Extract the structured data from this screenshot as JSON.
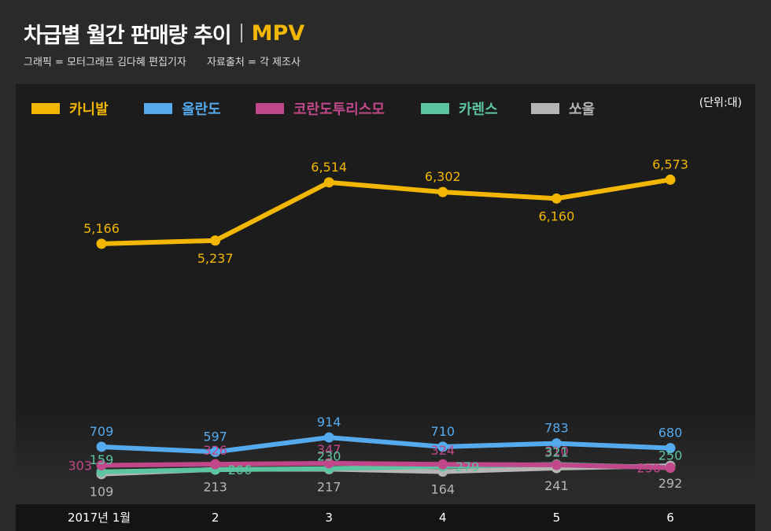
{
  "header": {
    "title": "차급별 월간 판매량 추이",
    "subtitle": "MPV",
    "graphic_credit": "그래픽 = 모터그래프 김다혜 편집기자",
    "source_credit": "자료출처 = 각 제조사"
  },
  "chart_data": {
    "type": "line",
    "title": "차급별 월간 판매량 추이 | MPV",
    "unit_label": "(단위:대)",
    "categories": [
      "2017년 1월",
      "2",
      "3",
      "4",
      "5",
      "6"
    ],
    "ylim": [
      0,
      7000
    ],
    "grid": false,
    "legend_position": "top",
    "series": [
      {
        "name": "카니발",
        "color": "#f2b705",
        "values": [
          5166,
          5237,
          6514,
          6302,
          6160,
          6573
        ],
        "labels": [
          "5,166",
          "5,237",
          "6,514",
          "6,302",
          "6,160",
          "6,573"
        ],
        "label_pos": [
          "above",
          "below",
          "above",
          "above",
          "below",
          "above"
        ]
      },
      {
        "name": "올란도",
        "color": "#55aaee",
        "values": [
          709,
          597,
          914,
          710,
          783,
          680
        ],
        "labels": [
          "709",
          "597",
          "914",
          "710",
          "783",
          "680"
        ],
        "label_pos": [
          "above",
          "above",
          "above",
          "above",
          "above",
          "above"
        ]
      },
      {
        "name": "코란도투리스모",
        "color": "#c0488a",
        "values": [
          303,
          326,
          347,
          324,
          310,
          250
        ],
        "labels": [
          "303",
          "326",
          "347",
          "324",
          "310",
          "250"
        ],
        "label_pos": [
          "left",
          "above",
          "above",
          "above",
          "above",
          "left"
        ]
      },
      {
        "name": "카렌스",
        "color": "#5cc4a0",
        "values": [
          159,
          206,
          230,
          279,
          321,
          250
        ],
        "labels": [
          "159",
          "206",
          "230",
          "279",
          "321",
          "250"
        ],
        "label_pos": [
          "above",
          "right",
          "above",
          "right",
          "above",
          "above"
        ]
      },
      {
        "name": "쏘울",
        "color": "#b5b5b5",
        "values": [
          109,
          213,
          217,
          164,
          241,
          292
        ],
        "labels": [
          "109",
          "213",
          "217",
          "164",
          "241",
          "292"
        ],
        "label_pos": [
          "below",
          "below",
          "below",
          "below",
          "below",
          "below"
        ]
      }
    ]
  }
}
